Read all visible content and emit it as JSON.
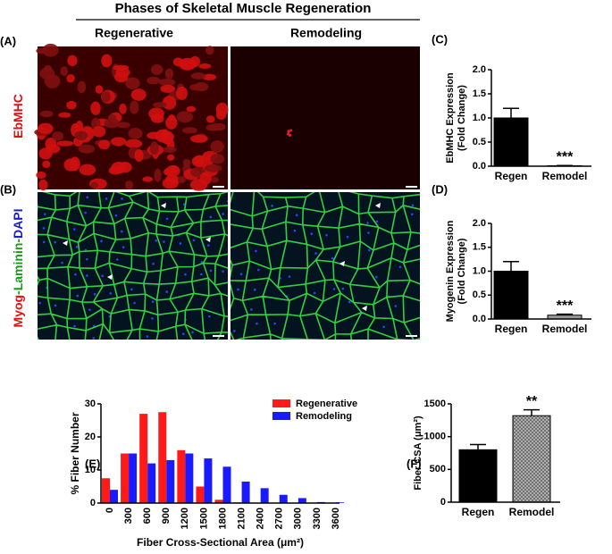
{
  "figure": {
    "title": "Phases of Skeletal Muscle Regeneration",
    "columns": [
      "Regenerative",
      "Remodeling"
    ],
    "panels": [
      {
        "label": "(A)",
        "stain": [
          {
            "text": "EbMHC",
            "color": "#e01010"
          }
        ]
      },
      {
        "label": "(B)",
        "stain": [
          {
            "text": "Myog",
            "color": "#e01010"
          },
          {
            "text": "-Laminin-",
            "color": "#1a9a1a"
          },
          {
            "text": "DAPI",
            "color": "#1a1ad0"
          }
        ]
      }
    ]
  },
  "chart_data": [
    {
      "type": "bar",
      "label": "(C)",
      "ylabel": [
        "EbMHC Expression",
        "(Fold Change)"
      ],
      "categories": [
        "Regen",
        "Remodel"
      ],
      "values": [
        1.0,
        0.01
      ],
      "errors": [
        0.2,
        0.005
      ],
      "colors": [
        "#000000",
        "#999999"
      ],
      "hatched": [
        false,
        false
      ],
      "annotation": "***",
      "ylim": [
        0,
        2
      ],
      "yticks": [
        {
          "value": 0,
          "label": "0.0"
        },
        0.5,
        {
          "value": 1,
          "label": "1.0"
        },
        1.5,
        {
          "value": 2,
          "label": "2.0"
        }
      ]
    },
    {
      "type": "bar",
      "label": "(D)",
      "ylabel": [
        "Myogenin Expression",
        "(Fold Change)"
      ],
      "categories": [
        "Regen",
        "Remodel"
      ],
      "values": [
        1.0,
        0.08
      ],
      "errors": [
        0.2,
        0.02
      ],
      "colors": [
        "#000000",
        "#999999"
      ],
      "hatched": [
        false,
        false
      ],
      "annotation": "***",
      "ylim": [
        0,
        2
      ],
      "yticks": [
        {
          "value": 0,
          "label": "0.0"
        },
        0.5,
        {
          "value": 1,
          "label": "1.0"
        },
        1.5,
        {
          "value": 2,
          "label": "2.0"
        }
      ]
    },
    {
      "type": "histogram",
      "label": "(E)",
      "ylabel": "% Fiber Number",
      "xlabel": "Fiber Cross-Sectional Area (μm²)",
      "categories": [
        "0",
        "300",
        "600",
        "900",
        "1200",
        "1500",
        "1800",
        "2100",
        "2400",
        "2700",
        "3000",
        "3300",
        "3600"
      ],
      "series": [
        {
          "name": "Regenerative",
          "color": "#ff1a1a",
          "values": [
            7.5,
            15,
            27,
            27.5,
            16,
            5,
            1,
            0.2,
            0,
            0,
            0,
            0,
            0
          ]
        },
        {
          "name": "Remodeling",
          "color": "#1a1aff",
          "values": [
            4,
            15,
            12,
            13,
            15,
            13.5,
            11,
            6.5,
            4.5,
            2.5,
            1.5,
            0.3,
            0.2
          ]
        }
      ],
      "legend": "top-right",
      "ylim": [
        0,
        30
      ],
      "yticks": [
        0,
        10,
        20,
        30
      ]
    },
    {
      "type": "bar",
      "label": "(F)",
      "ylabel": [
        "Fiber CSA (μm²)"
      ],
      "categories": [
        "Regen",
        "Remodel"
      ],
      "values": [
        800,
        1320
      ],
      "errors": [
        80,
        90
      ],
      "colors": [
        "#000000",
        "#999999"
      ],
      "hatched": [
        false,
        true
      ],
      "annotation": "**",
      "ylim": [
        0,
        1500
      ],
      "yticks": [
        0,
        500,
        1000,
        1500
      ]
    }
  ]
}
